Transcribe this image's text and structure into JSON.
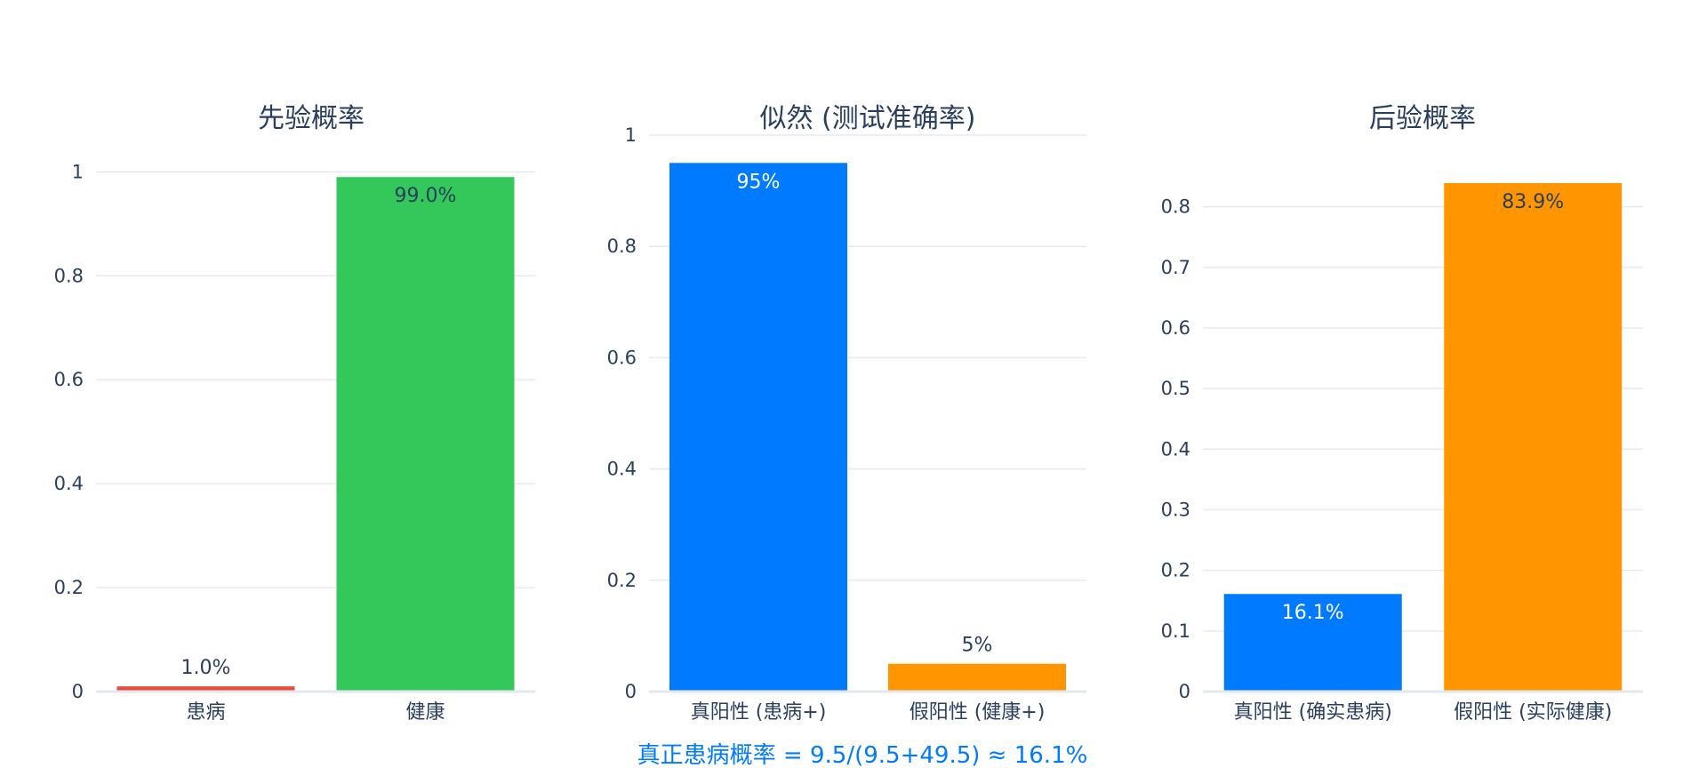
{
  "chart_data": [
    {
      "type": "bar",
      "title": "先验概率",
      "categories": [
        "患病",
        "健康"
      ],
      "values": [
        0.01,
        0.99
      ],
      "value_labels": [
        "1.0%",
        "99.0%"
      ],
      "colors": [
        "#e74c3c",
        "#34c759"
      ],
      "label_positions": [
        "outside",
        "inside"
      ],
      "label_colors": [
        "#2a3f5f",
        "#2a3f5f"
      ],
      "ylim": [
        0,
        1.04
      ],
      "yticks": [
        0,
        0.2,
        0.4,
        0.6,
        0.8,
        1
      ],
      "ytick_labels": [
        "0",
        "0.2",
        "0.4",
        "0.6",
        "0.8",
        "1"
      ],
      "grid": true
    },
    {
      "type": "bar",
      "title": "似然 (测试准确率)",
      "categories": [
        "真阳性 (患病+)",
        "假阳性 (健康+)"
      ],
      "values": [
        0.95,
        0.05
      ],
      "value_labels": [
        "95%",
        "5%"
      ],
      "colors": [
        "#007aff",
        "#ff9500"
      ],
      "label_positions": [
        "inside",
        "outside"
      ],
      "label_colors": [
        "#ffffff",
        "#2a3f5f"
      ],
      "ylim": [
        0,
        1.0
      ],
      "yticks": [
        0,
        0.2,
        0.4,
        0.6,
        0.8,
        1
      ],
      "ytick_labels": [
        "0",
        "0.2",
        "0.4",
        "0.6",
        "0.8",
        "1"
      ],
      "grid": true
    },
    {
      "type": "bar",
      "title": "后验概率",
      "categories": [
        "真阳性 (确实患病)",
        "假阳性 (实际健康)"
      ],
      "values": [
        0.161,
        0.839
      ],
      "value_labels": [
        "16.1%",
        "83.9%"
      ],
      "colors": [
        "#007aff",
        "#ff9500"
      ],
      "label_positions": [
        "inside",
        "inside"
      ],
      "label_colors": [
        "#ffffff",
        "#2a3f5f"
      ],
      "ylim": [
        0,
        0.883
      ],
      "yticks": [
        0,
        0.1,
        0.2,
        0.3,
        0.4,
        0.5,
        0.6,
        0.7,
        0.8
      ],
      "ytick_labels": [
        "0",
        "0.1",
        "0.2",
        "0.3",
        "0.4",
        "0.5",
        "0.6",
        "0.7",
        "0.8"
      ],
      "grid": true
    }
  ],
  "annotation": {
    "text": "真正患病概率 = 9.5/(9.5+49.5) ≈ 16.1%",
    "color": "#007aff"
  }
}
